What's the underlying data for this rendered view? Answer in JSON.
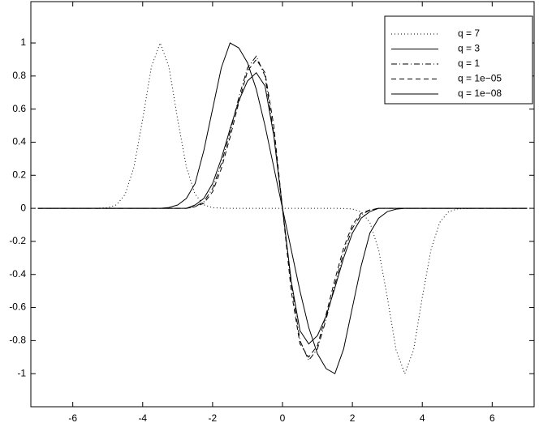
{
  "chart_data": {
    "type": "line",
    "x": [
      -7,
      -6.75,
      -6.5,
      -6.25,
      -6,
      -5.75,
      -5.5,
      -5.25,
      -5,
      -4.75,
      -4.5,
      -4.25,
      -4,
      -3.75,
      -3.5,
      -3.25,
      -3,
      -2.75,
      -2.5,
      -2.25,
      -2,
      -1.75,
      -1.5,
      -1.25,
      -1,
      -0.75,
      -0.5,
      -0.25,
      0,
      0.25,
      0.5,
      0.75,
      1,
      1.25,
      1.5,
      1.75,
      2,
      2.25,
      2.5,
      2.75,
      3,
      3.25,
      3.5,
      3.75,
      4,
      4.25,
      4.5,
      4.75,
      5,
      5.25,
      5.5,
      5.75,
      6,
      6.25,
      6.5,
      6.75,
      7
    ],
    "series": [
      {
        "name": "q = 7",
        "color": "#000000",
        "style": "dotted",
        "values": [
          0,
          0,
          0,
          0,
          0,
          0,
          0,
          0.001,
          0.004,
          0.021,
          0.085,
          0.249,
          0.539,
          0.857,
          1,
          0.857,
          0.539,
          0.249,
          0.085,
          0.021,
          0.004,
          0.001,
          0,
          0,
          0,
          0,
          0,
          0,
          0,
          0,
          0,
          0,
          0,
          0,
          0,
          -0.001,
          -0.004,
          -0.021,
          -0.085,
          -0.249,
          -0.539,
          -0.857,
          -1,
          -0.857,
          -0.539,
          -0.249,
          -0.085,
          -0.021,
          -0.004,
          -0.001,
          0,
          0,
          0,
          0,
          0,
          0,
          0
        ]
      },
      {
        "name": "q = 3",
        "color": "#000000",
        "style": "solid",
        "values": [
          0,
          0,
          0,
          0,
          0,
          0,
          0,
          0,
          0,
          0,
          0,
          0,
          0,
          0,
          0,
          0.005,
          0.02,
          0.06,
          0.15,
          0.35,
          0.6,
          0.85,
          1,
          0.97,
          0.88,
          0.72,
          0.5,
          0.25,
          0,
          -0.25,
          -0.5,
          -0.72,
          -0.88,
          -0.97,
          -1,
          -0.85,
          -0.6,
          -0.35,
          -0.15,
          -0.06,
          -0.02,
          -0.005,
          0,
          0,
          0,
          0,
          0,
          0,
          0,
          0,
          0,
          0,
          0,
          0,
          0,
          0,
          0
        ]
      },
      {
        "name": "q = 1",
        "color": "#000000",
        "style": "dashdot",
        "values": [
          0,
          0,
          0,
          0,
          0,
          0,
          0,
          0,
          0,
          0,
          0,
          0,
          0,
          0,
          0,
          0,
          0,
          0,
          0.01,
          0.04,
          0.12,
          0.27,
          0.46,
          0.67,
          0.85,
          0.92,
          0.8,
          0.45,
          0,
          -0.45,
          -0.8,
          -0.92,
          -0.85,
          -0.67,
          -0.46,
          -0.27,
          -0.12,
          -0.04,
          -0.01,
          0,
          0,
          0,
          0,
          0,
          0,
          0,
          0,
          0,
          0,
          0,
          0,
          0,
          0,
          0,
          0,
          0,
          0
        ]
      },
      {
        "name": "q = 1e−05",
        "color": "#000000",
        "style": "dashed",
        "values": [
          0,
          0,
          0,
          0,
          0,
          0,
          0,
          0,
          0,
          0,
          0,
          0,
          0,
          0,
          0,
          0,
          0,
          0,
          0.01,
          0.03,
          0.1,
          0.24,
          0.43,
          0.64,
          0.83,
          0.9,
          0.82,
          0.5,
          0,
          -0.5,
          -0.82,
          -0.9,
          -0.83,
          -0.64,
          -0.43,
          -0.24,
          -0.1,
          -0.03,
          -0.01,
          0,
          0,
          0,
          0,
          0,
          0,
          0,
          0,
          0,
          0,
          0,
          0,
          0,
          0,
          0,
          0,
          0,
          0
        ]
      },
      {
        "name": "q = 1e−08",
        "color": "#000000",
        "style": "solid",
        "values": [
          0,
          0,
          0,
          0,
          0,
          0,
          0,
          0,
          0,
          0,
          0,
          0,
          0,
          0,
          0,
          0,
          0,
          0,
          0.02,
          0.06,
          0.15,
          0.3,
          0.48,
          0.65,
          0.77,
          0.82,
          0.74,
          0.44,
          0,
          -0.44,
          -0.74,
          -0.82,
          -0.77,
          -0.65,
          -0.48,
          -0.3,
          -0.15,
          -0.06,
          -0.02,
          0,
          0,
          0,
          0,
          0,
          0,
          0,
          0,
          0,
          0,
          0,
          0,
          0,
          0,
          0,
          0,
          0,
          0
        ]
      }
    ],
    "xlim": [
      -7.2,
      7.2
    ],
    "ylim": [
      -1.2,
      1.25
    ],
    "xticks": [
      -6,
      -4,
      -2,
      0,
      2,
      4,
      6
    ],
    "yticks": [
      -1,
      -0.8,
      -0.6,
      -0.4,
      -0.2,
      0,
      0.2,
      0.4,
      0.6,
      0.8,
      1
    ],
    "grid": false,
    "legend": "northeast"
  }
}
